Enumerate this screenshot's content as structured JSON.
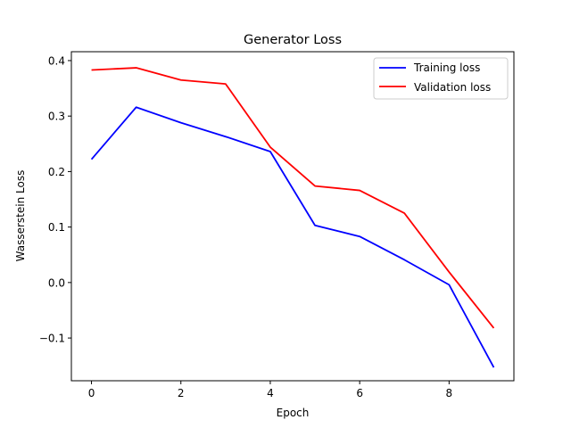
{
  "chart_data": {
    "type": "line",
    "title": "Generator Loss",
    "xlabel": "Epoch",
    "ylabel": "Wasserstein Loss",
    "x": [
      0,
      1,
      2,
      3,
      4,
      5,
      6,
      7,
      8,
      9
    ],
    "xlim": [
      -0.45,
      9.45
    ],
    "ylim": [
      -0.177,
      0.416
    ],
    "xticks": [
      0,
      2,
      4,
      6,
      8
    ],
    "xtick_labels": [
      "0",
      "2",
      "4",
      "6",
      "8"
    ],
    "yticks": [
      -0.1,
      0.0,
      0.1,
      0.2,
      0.3,
      0.4
    ],
    "ytick_labels": [
      "−0.1",
      "0.0",
      "0.1",
      "0.2",
      "0.3",
      "0.4"
    ],
    "grid": false,
    "legend_position": "top-right",
    "series": [
      {
        "name": "Training loss",
        "color": "#0000ff",
        "values": [
          0.222,
          0.316,
          0.288,
          0.263,
          0.236,
          0.103,
          0.083,
          0.041,
          -0.004,
          -0.153
        ]
      },
      {
        "name": "Validation loss",
        "color": "#ff0000",
        "values": [
          0.383,
          0.387,
          0.365,
          0.358,
          0.244,
          0.174,
          0.166,
          0.125,
          0.019,
          -0.082
        ]
      }
    ]
  }
}
